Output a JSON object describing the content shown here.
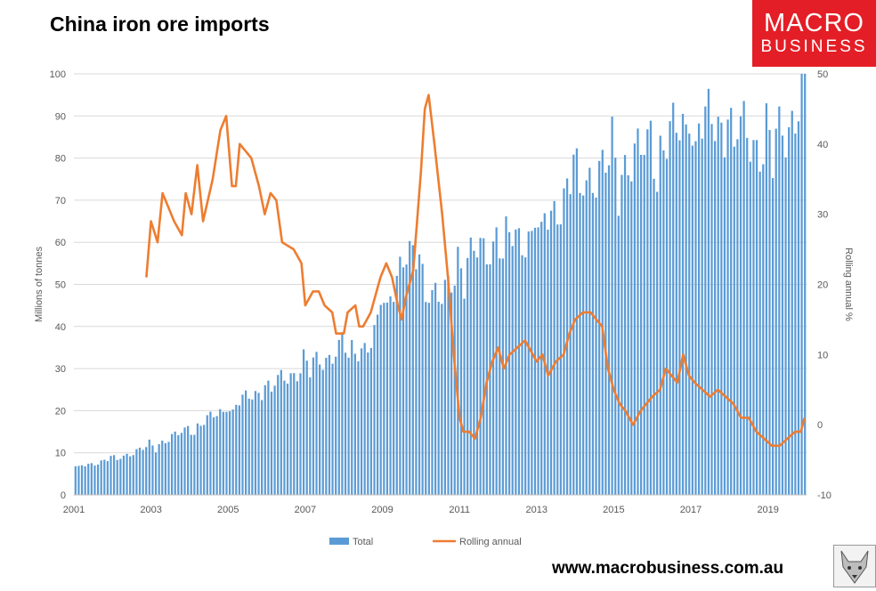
{
  "header": {
    "title": "China iron ore imports"
  },
  "logo": {
    "line1": "MACRO",
    "line2": "BUSINESS"
  },
  "footer": {
    "website": "www.macrobusiness.com.au"
  },
  "colors": {
    "total": "#5b9bd5",
    "rolling": "#ed7d31",
    "grid": "#d9d9d9",
    "axis_text": "#595959",
    "logo_bg": "#e41e26"
  },
  "chart_data": {
    "type": "bar+line",
    "title": "China iron ore imports",
    "left_axis": {
      "label": "Millions of tonnes",
      "ylim": [
        0,
        100
      ],
      "ticks": [
        0,
        10,
        20,
        30,
        40,
        50,
        60,
        70,
        80,
        90,
        100
      ]
    },
    "right_axis": {
      "label": "Rolling annual %",
      "ylim": [
        -10,
        50
      ],
      "ticks": [
        -10,
        0,
        10,
        20,
        30,
        40,
        50
      ]
    },
    "x_axis": {
      "start": "2001-01",
      "end": "2019-12",
      "tick_labels": [
        "2001",
        "2003",
        "2005",
        "2007",
        "2009",
        "2011",
        "2013",
        "2015",
        "2017",
        "2019"
      ]
    },
    "legend": [
      "Total",
      "Rolling annual"
    ],
    "series": [
      {
        "name": "Total",
        "type": "bar",
        "axis": "left",
        "start": "2001-01",
        "frequency": "monthly",
        "anchors": [
          [
            2001.0,
            6.5
          ],
          [
            2002.0,
            8.5
          ],
          [
            2003.0,
            11.5
          ],
          [
            2004.0,
            15.5
          ],
          [
            2005.0,
            20.5
          ],
          [
            2006.0,
            25.5
          ],
          [
            2007.0,
            30.5
          ],
          [
            2008.0,
            34.5
          ],
          [
            2008.75,
            35.5
          ],
          [
            2009.0,
            45
          ],
          [
            2009.5,
            55
          ],
          [
            2009.9,
            56
          ],
          [
            2010.5,
            45
          ],
          [
            2011.0,
            55
          ],
          [
            2012.0,
            60
          ],
          [
            2013.0,
            62
          ],
          [
            2014.0,
            75
          ],
          [
            2015.0,
            78
          ],
          [
            2016.0,
            82
          ],
          [
            2017.0,
            88
          ],
          [
            2018.0,
            88
          ],
          [
            2019.0,
            82
          ],
          [
            2019.5,
            88
          ],
          [
            2019.95,
            95
          ]
        ]
      },
      {
        "name": "Rolling annual",
        "type": "line",
        "axis": "right",
        "points": [
          [
            2002.88,
            21
          ],
          [
            2003.0,
            29
          ],
          [
            2003.17,
            26
          ],
          [
            2003.3,
            33
          ],
          [
            2003.6,
            29
          ],
          [
            2003.8,
            27
          ],
          [
            2003.9,
            33
          ],
          [
            2004.05,
            30
          ],
          [
            2004.2,
            37
          ],
          [
            2004.35,
            29
          ],
          [
            2004.6,
            35
          ],
          [
            2004.8,
            42
          ],
          [
            2004.95,
            44
          ],
          [
            2005.1,
            34
          ],
          [
            2005.2,
            34
          ],
          [
            2005.3,
            40
          ],
          [
            2005.6,
            38
          ],
          [
            2005.8,
            34
          ],
          [
            2005.95,
            30
          ],
          [
            2006.1,
            33
          ],
          [
            2006.25,
            32
          ],
          [
            2006.4,
            26
          ],
          [
            2006.7,
            25
          ],
          [
            2006.9,
            23
          ],
          [
            2007.0,
            17
          ],
          [
            2007.2,
            19
          ],
          [
            2007.35,
            19
          ],
          [
            2007.5,
            17
          ],
          [
            2007.7,
            16
          ],
          [
            2007.8,
            13
          ],
          [
            2008.0,
            13
          ],
          [
            2008.1,
            16
          ],
          [
            2008.3,
            17
          ],
          [
            2008.4,
            14
          ],
          [
            2008.5,
            14
          ],
          [
            2008.7,
            16
          ],
          [
            2008.85,
            19
          ],
          [
            2008.95,
            21
          ],
          [
            2009.1,
            23
          ],
          [
            2009.25,
            21
          ],
          [
            2009.4,
            17
          ],
          [
            2009.5,
            15
          ],
          [
            2009.6,
            18
          ],
          [
            2009.8,
            22
          ],
          [
            2010.0,
            36
          ],
          [
            2010.1,
            45
          ],
          [
            2010.2,
            47
          ],
          [
            2010.35,
            40
          ],
          [
            2010.55,
            30
          ],
          [
            2010.7,
            21
          ],
          [
            2010.85,
            10
          ],
          [
            2011.0,
            1
          ],
          [
            2011.1,
            -1
          ],
          [
            2011.25,
            -1
          ],
          [
            2011.4,
            -2
          ],
          [
            2011.55,
            1
          ],
          [
            2011.7,
            6
          ],
          [
            2011.85,
            9
          ],
          [
            2012.0,
            11
          ],
          [
            2012.15,
            8
          ],
          [
            2012.3,
            10
          ],
          [
            2012.5,
            11
          ],
          [
            2012.7,
            12
          ],
          [
            2012.9,
            10
          ],
          [
            2013.0,
            9
          ],
          [
            2013.15,
            10
          ],
          [
            2013.3,
            7
          ],
          [
            2013.5,
            9
          ],
          [
            2013.7,
            10
          ],
          [
            2013.85,
            13
          ],
          [
            2014.0,
            15
          ],
          [
            2014.2,
            16
          ],
          [
            2014.4,
            16
          ],
          [
            2014.55,
            15
          ],
          [
            2014.7,
            14
          ],
          [
            2014.85,
            8
          ],
          [
            2015.0,
            5
          ],
          [
            2015.15,
            3
          ],
          [
            2015.3,
            2
          ],
          [
            2015.5,
            0
          ],
          [
            2015.7,
            2
          ],
          [
            2015.85,
            3
          ],
          [
            2016.0,
            4
          ],
          [
            2016.2,
            5
          ],
          [
            2016.35,
            8
          ],
          [
            2016.5,
            7
          ],
          [
            2016.65,
            6
          ],
          [
            2016.8,
            10
          ],
          [
            2016.95,
            7
          ],
          [
            2017.1,
            6
          ],
          [
            2017.3,
            5
          ],
          [
            2017.5,
            4
          ],
          [
            2017.7,
            5
          ],
          [
            2017.9,
            4
          ],
          [
            2018.1,
            3
          ],
          [
            2018.3,
            1
          ],
          [
            2018.5,
            1
          ],
          [
            2018.7,
            -1
          ],
          [
            2018.9,
            -2
          ],
          [
            2019.1,
            -3
          ],
          [
            2019.3,
            -3
          ],
          [
            2019.5,
            -2
          ],
          [
            2019.7,
            -1
          ],
          [
            2019.85,
            -1
          ],
          [
            2019.95,
            1
          ]
        ]
      }
    ]
  }
}
